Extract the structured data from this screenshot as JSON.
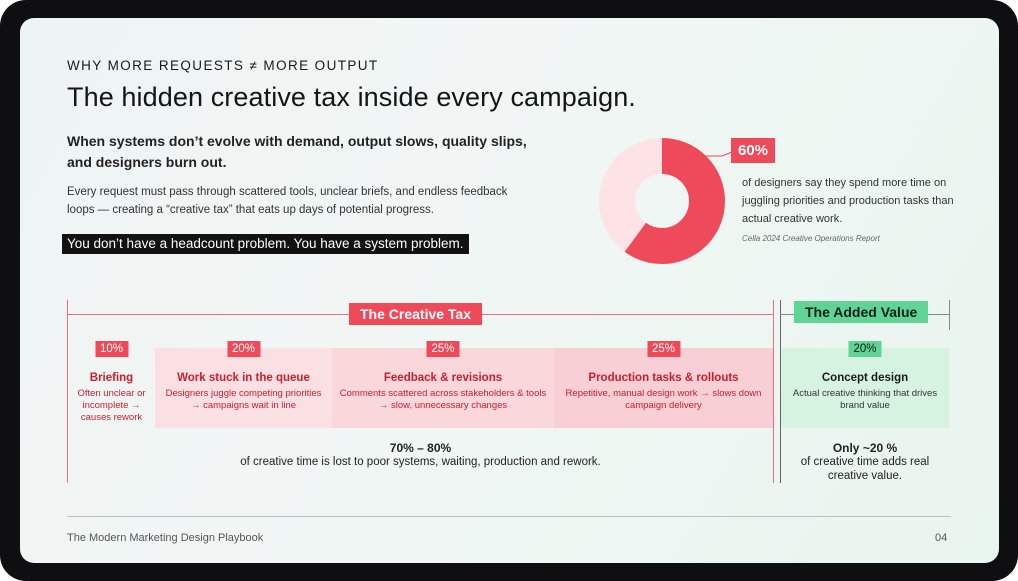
{
  "header": {
    "kicker": "WHY MORE REQUESTS ≠ MORE OUTPUT",
    "title": "The hidden creative tax inside every campaign."
  },
  "intro": {
    "lead": "When systems don’t evolve with demand, output slows, quality slips, and designers burn out.",
    "body": "Every request must pass through scattered tools, unclear briefs, and endless feedback loops — creating a “creative tax” that eats up days of potential progress.",
    "callout": "You don’t have a headcount problem. You have a system problem."
  },
  "stat": {
    "value": "60%",
    "fraction": 0.6,
    "text": "of designers say they spend more time on juggling priorities and production tasks than actual creative work.",
    "source": "Cella 2024 Creative Operations Report",
    "colors": {
      "filled": "#ef4a5a",
      "remainder": "#fde3e6"
    }
  },
  "band": {
    "tax_label": "The Creative Tax",
    "value_label": "The Added Value",
    "columns": [
      {
        "pct": "10%",
        "heading": "Briefing",
        "desc": "Often unclear or incomplete → causes rework"
      },
      {
        "pct": "20%",
        "heading": "Work stuck in the queue",
        "desc": "Designers juggle competing priorities → campaigns wait in line"
      },
      {
        "pct": "25%",
        "heading": "Feedback & revisions",
        "desc": "Comments scattered across stakeholders & tools → slow, unnecessary changes"
      },
      {
        "pct": "25%",
        "heading": "Production tasks & rollouts",
        "desc": "Repetitive, manual design work → slows down campaign delivery"
      },
      {
        "pct": "20%",
        "heading": "Concept design",
        "desc": "Actual creative thinking that drives brand value"
      }
    ],
    "summary_tax": {
      "big": "70% – 80%",
      "text": "of creative time is lost to poor systems, waiting, production and rework."
    },
    "summary_value": {
      "big": "Only ~20 %",
      "text": "of creative time adds real creative value."
    }
  },
  "footer": {
    "left": "The Modern Marketing Design Playbook",
    "right": "04"
  }
}
